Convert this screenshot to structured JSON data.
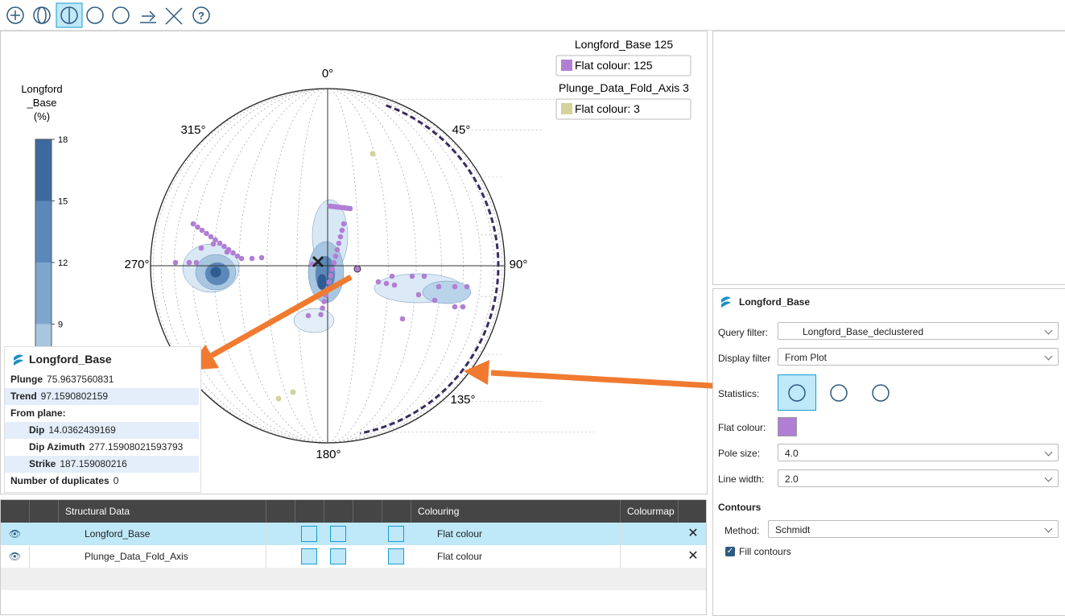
{
  "toolbar": {},
  "colourbar": {
    "title": [
      "Longford",
      "_Base",
      "(%)"
    ],
    "ticks": [
      18,
      15,
      12,
      9
    ]
  },
  "stereonet": {
    "labels": {
      "n": "0°",
      "ne": "45°",
      "e": "90°",
      "se": "135°",
      "s": "180°",
      "w": "270°",
      "nw": "315°"
    }
  },
  "legend": [
    {
      "title": "Longford_Base 125",
      "entry": "Flat colour: 125",
      "color": "#b07fd4"
    },
    {
      "title": "Plunge_Data_Fold_Axis 3",
      "entry": "Flat colour: 3",
      "color": "#d3d39a"
    }
  ],
  "info": {
    "title": "Longford_Base",
    "rows": [
      {
        "label": "Plunge",
        "value": "75.9637560831"
      },
      {
        "label": "Trend",
        "value": "97.1590802159"
      },
      {
        "label": "From plane:"
      },
      {
        "label": "Dip",
        "value": "14.0362439169"
      },
      {
        "label": "Dip Azimuth",
        "value": "277.15908021593793"
      },
      {
        "label": "Strike",
        "value": "187.159080216"
      },
      {
        "label": "Number of duplicates",
        "value": "0"
      }
    ]
  },
  "table": {
    "headers": {
      "name": "Structural Data",
      "colouring": "Colouring",
      "colourmap": "Colourmap"
    },
    "rows": [
      {
        "name": "Longford_Base",
        "colouring": "Flat colour"
      },
      {
        "name": "Plunge_Data_Fold_Axis",
        "colouring": "Flat colour"
      }
    ]
  },
  "properties": {
    "title": "Longford_Base",
    "query_filter": {
      "label": "Query filter:",
      "value": "Longford_Base_declustered"
    },
    "display_filter": {
      "label": "Display filter",
      "value": "From Plot"
    },
    "statistics": {
      "label": "Statistics:"
    },
    "flat_colour": {
      "label": "Flat colour:",
      "color": "#b07fd4"
    },
    "pole_size": {
      "label": "Pole size:",
      "value": "4.0"
    },
    "line_width": {
      "label": "Line width:",
      "value": "2.0"
    },
    "contours": {
      "title": "Contours",
      "method": {
        "label": "Method:",
        "value": "Schmidt"
      },
      "fill": "Fill contours"
    }
  }
}
